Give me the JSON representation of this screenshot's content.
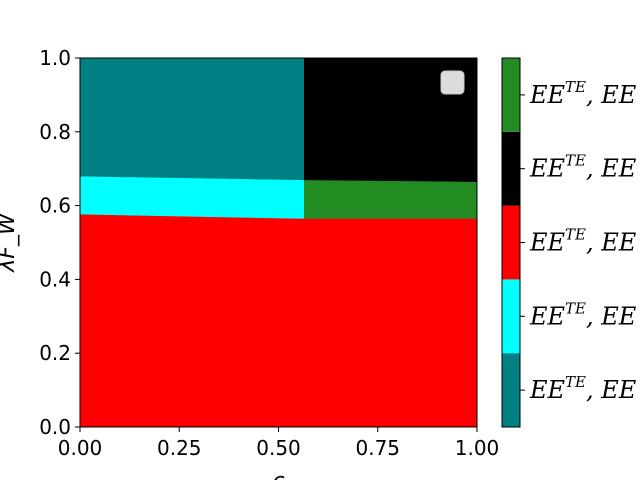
{
  "chart_data": {
    "type": "heatmap",
    "title": "",
    "xlabel": "c",
    "ylabel": "λF_W",
    "xlim": [
      0.0,
      1.0
    ],
    "ylim": [
      0.0,
      1.0
    ],
    "x_ticks": [
      "0.00",
      "0.25",
      "0.50",
      "0.75",
      "1.00"
    ],
    "x_tick_values": [
      0.0,
      0.25,
      0.5,
      0.75,
      1.0
    ],
    "y_ticks": [
      "0.0",
      "0.2",
      "0.4",
      "0.6",
      "0.8",
      "1.0"
    ],
    "y_tick_values": [
      0.0,
      0.2,
      0.4,
      0.6,
      0.8,
      1.0
    ],
    "regions": [
      {
        "color": "#ff0000",
        "polygon": [
          [
            0.0,
            0.0
          ],
          [
            1.0,
            0.0
          ],
          [
            1.0,
            0.565
          ],
          [
            0.565,
            0.565
          ],
          [
            0.0,
            0.577
          ]
        ]
      },
      {
        "color": "#00ffff",
        "polygon": [
          [
            0.0,
            0.577
          ],
          [
            0.565,
            0.565
          ],
          [
            0.565,
            0.67
          ],
          [
            0.0,
            0.68
          ]
        ]
      },
      {
        "color": "#008080",
        "polygon": [
          [
            0.0,
            0.68
          ],
          [
            0.565,
            0.67
          ],
          [
            0.565,
            1.0
          ],
          [
            0.0,
            1.0
          ]
        ]
      },
      {
        "color": "#228b22",
        "polygon": [
          [
            0.565,
            0.565
          ],
          [
            1.0,
            0.565
          ],
          [
            1.0,
            0.665
          ],
          [
            0.565,
            0.67
          ]
        ]
      },
      {
        "color": "#000000",
        "polygon": [
          [
            0.565,
            0.67
          ],
          [
            1.0,
            0.665
          ],
          [
            1.0,
            1.0
          ],
          [
            0.565,
            1.0
          ]
        ]
      }
    ],
    "legend": {
      "placement": "top-right",
      "entries": []
    },
    "colorbar": {
      "colors_bottom_to_top": [
        "#008080",
        "#00ffff",
        "#ff0000",
        "#000000",
        "#228b22"
      ],
      "label_base": "EE",
      "label_sup": "TE",
      "label_suffix": ", EE"
    }
  }
}
